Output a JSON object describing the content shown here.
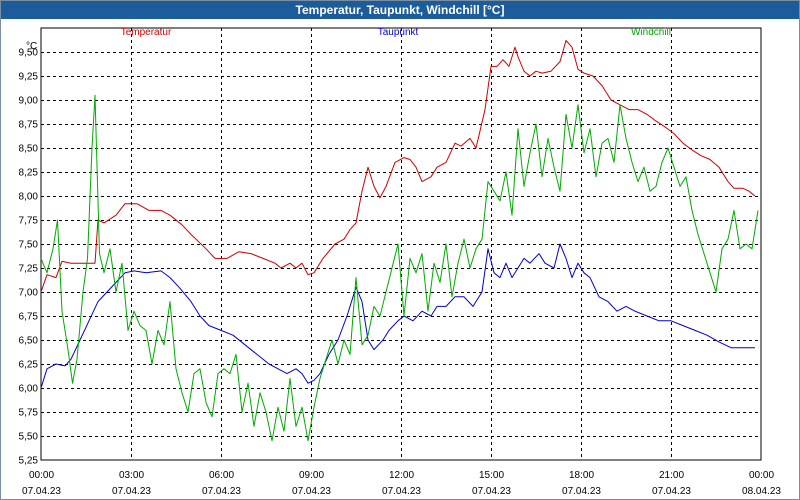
{
  "window": {
    "title": "Temperatur, Taupunkt, Windchill [°C]"
  },
  "chart_data": {
    "type": "line",
    "title": "Temperatur, Taupunkt, Windchill [°C]",
    "ylabel": "°C",
    "xlabel": "",
    "ylim": [
      5.25,
      9.75
    ],
    "xlim": [
      0,
      24
    ],
    "grid": true,
    "y_ticks": [
      "5,25",
      "5,50",
      "5,75",
      "6,00",
      "6,25",
      "6,50",
      "6,75",
      "7,00",
      "7,25",
      "7,50",
      "7,75",
      "8,00",
      "8,25",
      "8,50",
      "8,75",
      "9,00",
      "9,25",
      "9,50"
    ],
    "x_ticks": [
      {
        "time": "00:00",
        "date": "07.04.23"
      },
      {
        "time": "03:00",
        "date": "07.04.23"
      },
      {
        "time": "06:00",
        "date": "07.04.23"
      },
      {
        "time": "09:00",
        "date": "07.04.23"
      },
      {
        "time": "12:00",
        "date": "07.04.23"
      },
      {
        "time": "15:00",
        "date": "07.04.23"
      },
      {
        "time": "18:00",
        "date": "07.04.23"
      },
      {
        "time": "21:00",
        "date": "07.04.23"
      },
      {
        "time": "00:00",
        "date": "08.04.23"
      }
    ],
    "series": [
      {
        "name": "Temperatur",
        "color": "#cc0000",
        "points": [
          [
            0,
            7.0
          ],
          [
            0.2,
            7.18
          ],
          [
            0.5,
            7.15
          ],
          [
            0.7,
            7.32
          ],
          [
            1.0,
            7.3
          ],
          [
            1.3,
            7.3
          ],
          [
            1.6,
            7.3
          ],
          [
            1.8,
            7.3
          ],
          [
            1.9,
            7.75
          ],
          [
            2.1,
            7.72
          ],
          [
            2.5,
            7.8
          ],
          [
            2.8,
            7.92
          ],
          [
            3.2,
            7.92
          ],
          [
            3.6,
            7.85
          ],
          [
            4.0,
            7.85
          ],
          [
            4.3,
            7.8
          ],
          [
            4.7,
            7.7
          ],
          [
            5.0,
            7.6
          ],
          [
            5.5,
            7.45
          ],
          [
            5.8,
            7.35
          ],
          [
            6.2,
            7.35
          ],
          [
            6.6,
            7.42
          ],
          [
            7.0,
            7.4
          ],
          [
            7.4,
            7.35
          ],
          [
            7.8,
            7.3
          ],
          [
            8.0,
            7.25
          ],
          [
            8.3,
            7.3
          ],
          [
            8.5,
            7.25
          ],
          [
            8.7,
            7.3
          ],
          [
            8.9,
            7.18
          ],
          [
            9.1,
            7.2
          ],
          [
            9.4,
            7.35
          ],
          [
            9.8,
            7.5
          ],
          [
            10.1,
            7.55
          ],
          [
            10.3,
            7.65
          ],
          [
            10.5,
            7.72
          ],
          [
            10.7,
            8.05
          ],
          [
            10.9,
            8.3
          ],
          [
            11.1,
            8.1
          ],
          [
            11.3,
            7.98
          ],
          [
            11.5,
            8.1
          ],
          [
            11.8,
            8.35
          ],
          [
            12.1,
            8.4
          ],
          [
            12.3,
            8.38
          ],
          [
            12.5,
            8.3
          ],
          [
            12.7,
            8.15
          ],
          [
            13.0,
            8.2
          ],
          [
            13.2,
            8.3
          ],
          [
            13.5,
            8.35
          ],
          [
            13.8,
            8.55
          ],
          [
            14.0,
            8.52
          ],
          [
            14.3,
            8.6
          ],
          [
            14.5,
            8.5
          ],
          [
            14.8,
            8.9
          ],
          [
            15.0,
            9.35
          ],
          [
            15.2,
            9.35
          ],
          [
            15.4,
            9.42
          ],
          [
            15.6,
            9.35
          ],
          [
            15.8,
            9.55
          ],
          [
            15.9,
            9.45
          ],
          [
            16.1,
            9.3
          ],
          [
            16.3,
            9.25
          ],
          [
            16.5,
            9.3
          ],
          [
            16.7,
            9.28
          ],
          [
            17.0,
            9.3
          ],
          [
            17.3,
            9.4
          ],
          [
            17.5,
            9.62
          ],
          [
            17.7,
            9.55
          ],
          [
            17.9,
            9.32
          ],
          [
            18.1,
            9.28
          ],
          [
            18.4,
            9.25
          ],
          [
            18.7,
            9.15
          ],
          [
            19.0,
            9.0
          ],
          [
            19.3,
            8.95
          ],
          [
            19.6,
            8.9
          ],
          [
            19.9,
            8.9
          ],
          [
            20.2,
            8.85
          ],
          [
            20.5,
            8.78
          ],
          [
            20.8,
            8.72
          ],
          [
            21.1,
            8.65
          ],
          [
            21.4,
            8.55
          ],
          [
            21.7,
            8.48
          ],
          [
            22.0,
            8.42
          ],
          [
            22.3,
            8.38
          ],
          [
            22.6,
            8.3
          ],
          [
            22.9,
            8.15
          ],
          [
            23.1,
            8.08
          ],
          [
            23.4,
            8.08
          ],
          [
            23.6,
            8.05
          ],
          [
            23.8,
            8.0
          ]
        ]
      },
      {
        "name": "Taupunkt",
        "color": "#0000cc",
        "points": [
          [
            0,
            6.0
          ],
          [
            0.2,
            6.2
          ],
          [
            0.5,
            6.25
          ],
          [
            0.8,
            6.23
          ],
          [
            1.0,
            6.3
          ],
          [
            1.3,
            6.5
          ],
          [
            1.6,
            6.7
          ],
          [
            1.9,
            6.9
          ],
          [
            2.2,
            7.0
          ],
          [
            2.5,
            7.1
          ],
          [
            2.8,
            7.2
          ],
          [
            3.1,
            7.22
          ],
          [
            3.5,
            7.2
          ],
          [
            4.0,
            7.22
          ],
          [
            4.3,
            7.15
          ],
          [
            4.6,
            7.05
          ],
          [
            5.0,
            6.9
          ],
          [
            5.3,
            6.75
          ],
          [
            5.6,
            6.65
          ],
          [
            6.0,
            6.6
          ],
          [
            6.4,
            6.55
          ],
          [
            6.8,
            6.45
          ],
          [
            7.2,
            6.35
          ],
          [
            7.6,
            6.25
          ],
          [
            7.9,
            6.2
          ],
          [
            8.2,
            6.15
          ],
          [
            8.5,
            6.2
          ],
          [
            8.7,
            6.15
          ],
          [
            8.9,
            6.05
          ],
          [
            9.1,
            6.08
          ],
          [
            9.3,
            6.15
          ],
          [
            9.6,
            6.35
          ],
          [
            9.9,
            6.5
          ],
          [
            10.2,
            6.75
          ],
          [
            10.4,
            6.95
          ],
          [
            10.5,
            7.05
          ],
          [
            10.7,
            6.9
          ],
          [
            10.9,
            6.5
          ],
          [
            11.1,
            6.4
          ],
          [
            11.4,
            6.5
          ],
          [
            11.6,
            6.6
          ],
          [
            11.9,
            6.7
          ],
          [
            12.1,
            6.75
          ],
          [
            12.4,
            6.7
          ],
          [
            12.7,
            6.8
          ],
          [
            13.0,
            6.75
          ],
          [
            13.2,
            6.85
          ],
          [
            13.5,
            6.85
          ],
          [
            13.8,
            6.95
          ],
          [
            14.1,
            6.95
          ],
          [
            14.4,
            6.85
          ],
          [
            14.7,
            7.0
          ],
          [
            14.9,
            7.45
          ],
          [
            15.1,
            7.2
          ],
          [
            15.3,
            7.15
          ],
          [
            15.5,
            7.3
          ],
          [
            15.7,
            7.15
          ],
          [
            15.9,
            7.25
          ],
          [
            16.1,
            7.35
          ],
          [
            16.3,
            7.3
          ],
          [
            16.6,
            7.4
          ],
          [
            16.8,
            7.3
          ],
          [
            17.1,
            7.25
          ],
          [
            17.3,
            7.5
          ],
          [
            17.5,
            7.35
          ],
          [
            17.7,
            7.15
          ],
          [
            17.9,
            7.3
          ],
          [
            18.1,
            7.2
          ],
          [
            18.3,
            7.15
          ],
          [
            18.6,
            6.95
          ],
          [
            18.9,
            6.9
          ],
          [
            19.2,
            6.8
          ],
          [
            19.5,
            6.85
          ],
          [
            19.8,
            6.8
          ],
          [
            20.2,
            6.75
          ],
          [
            20.6,
            6.7
          ],
          [
            21.0,
            6.7
          ],
          [
            21.4,
            6.65
          ],
          [
            21.8,
            6.6
          ],
          [
            22.2,
            6.55
          ],
          [
            22.6,
            6.48
          ],
          [
            23.0,
            6.42
          ],
          [
            23.4,
            6.42
          ],
          [
            23.8,
            6.42
          ]
        ]
      },
      {
        "name": "Windchill",
        "color": "#00aa00",
        "points": [
          [
            0,
            7.35
          ],
          [
            0.2,
            7.2
          ],
          [
            0.4,
            7.45
          ],
          [
            0.55,
            7.75
          ],
          [
            0.7,
            6.8
          ],
          [
            0.9,
            6.4
          ],
          [
            1.05,
            6.05
          ],
          [
            1.2,
            6.3
          ],
          [
            1.4,
            7.0
          ],
          [
            1.55,
            7.35
          ],
          [
            1.7,
            8.5
          ],
          [
            1.8,
            9.05
          ],
          [
            1.95,
            7.4
          ],
          [
            2.1,
            7.2
          ],
          [
            2.3,
            7.45
          ],
          [
            2.5,
            7.0
          ],
          [
            2.7,
            7.3
          ],
          [
            2.9,
            6.6
          ],
          [
            3.1,
            6.8
          ],
          [
            3.3,
            6.65
          ],
          [
            3.5,
            6.6
          ],
          [
            3.7,
            6.25
          ],
          [
            3.9,
            6.6
          ],
          [
            4.1,
            6.45
          ],
          [
            4.3,
            6.9
          ],
          [
            4.5,
            6.2
          ],
          [
            4.7,
            5.95
          ],
          [
            4.9,
            5.75
          ],
          [
            5.1,
            6.15
          ],
          [
            5.3,
            6.2
          ],
          [
            5.5,
            5.85
          ],
          [
            5.7,
            5.7
          ],
          [
            5.9,
            6.15
          ],
          [
            6.1,
            6.2
          ],
          [
            6.3,
            6.15
          ],
          [
            6.5,
            6.35
          ],
          [
            6.7,
            5.75
          ],
          [
            6.9,
            6.05
          ],
          [
            7.1,
            5.6
          ],
          [
            7.3,
            5.95
          ],
          [
            7.5,
            5.75
          ],
          [
            7.7,
            5.45
          ],
          [
            7.9,
            5.8
          ],
          [
            8.1,
            5.55
          ],
          [
            8.3,
            6.1
          ],
          [
            8.5,
            5.6
          ],
          [
            8.7,
            5.8
          ],
          [
            8.9,
            5.45
          ],
          [
            9.1,
            5.8
          ],
          [
            9.3,
            6.1
          ],
          [
            9.5,
            6.3
          ],
          [
            9.7,
            6.5
          ],
          [
            9.9,
            6.25
          ],
          [
            10.1,
            6.5
          ],
          [
            10.3,
            6.35
          ],
          [
            10.5,
            7.15
          ],
          [
            10.7,
            6.45
          ],
          [
            10.9,
            6.55
          ],
          [
            11.1,
            6.85
          ],
          [
            11.3,
            6.75
          ],
          [
            11.5,
            7.0
          ],
          [
            11.7,
            7.25
          ],
          [
            11.9,
            7.5
          ],
          [
            12.1,
            6.75
          ],
          [
            12.3,
            7.35
          ],
          [
            12.5,
            7.2
          ],
          [
            12.7,
            7.4
          ],
          [
            12.9,
            6.8
          ],
          [
            13.1,
            7.3
          ],
          [
            13.3,
            7.1
          ],
          [
            13.5,
            7.5
          ],
          [
            13.7,
            6.95
          ],
          [
            13.9,
            7.3
          ],
          [
            14.1,
            7.55
          ],
          [
            14.3,
            7.25
          ],
          [
            14.5,
            7.45
          ],
          [
            14.7,
            7.55
          ],
          [
            14.9,
            8.15
          ],
          [
            15.1,
            8.05
          ],
          [
            15.3,
            7.95
          ],
          [
            15.5,
            8.25
          ],
          [
            15.7,
            7.8
          ],
          [
            15.9,
            8.7
          ],
          [
            16.1,
            8.1
          ],
          [
            16.3,
            8.45
          ],
          [
            16.5,
            8.75
          ],
          [
            16.7,
            8.2
          ],
          [
            16.9,
            8.6
          ],
          [
            17.1,
            8.3
          ],
          [
            17.3,
            8.05
          ],
          [
            17.5,
            8.85
          ],
          [
            17.7,
            8.5
          ],
          [
            17.9,
            8.95
          ],
          [
            18.1,
            8.45
          ],
          [
            18.3,
            8.7
          ],
          [
            18.5,
            8.2
          ],
          [
            18.7,
            8.55
          ],
          [
            18.9,
            8.6
          ],
          [
            19.1,
            8.35
          ],
          [
            19.3,
            8.95
          ],
          [
            19.5,
            8.6
          ],
          [
            19.7,
            8.35
          ],
          [
            19.9,
            8.15
          ],
          [
            20.1,
            8.3
          ],
          [
            20.3,
            8.05
          ],
          [
            20.5,
            8.1
          ],
          [
            20.7,
            8.35
          ],
          [
            20.9,
            8.5
          ],
          [
            21.1,
            8.3
          ],
          [
            21.3,
            8.1
          ],
          [
            21.5,
            8.2
          ],
          [
            21.7,
            7.85
          ],
          [
            21.9,
            7.6
          ],
          [
            22.1,
            7.4
          ],
          [
            22.3,
            7.2
          ],
          [
            22.5,
            7.0
          ],
          [
            22.7,
            7.45
          ],
          [
            22.9,
            7.55
          ],
          [
            23.1,
            7.85
          ],
          [
            23.3,
            7.45
          ],
          [
            23.5,
            7.5
          ],
          [
            23.7,
            7.45
          ],
          [
            23.9,
            7.85
          ]
        ]
      }
    ]
  }
}
